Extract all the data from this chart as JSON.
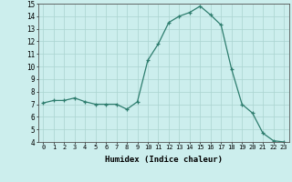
{
  "x": [
    0,
    1,
    2,
    3,
    4,
    5,
    6,
    7,
    8,
    9,
    10,
    11,
    12,
    13,
    14,
    15,
    16,
    17,
    18,
    19,
    20,
    21,
    22,
    23
  ],
  "y": [
    7.1,
    7.3,
    7.3,
    7.5,
    7.2,
    7.0,
    7.0,
    7.0,
    6.6,
    7.2,
    10.5,
    11.8,
    13.5,
    14.0,
    14.3,
    14.8,
    14.1,
    13.3,
    9.8,
    7.0,
    6.3,
    4.7,
    4.1,
    4.0
  ],
  "xlabel": "Humidex (Indice chaleur)",
  "xlim_min": -0.5,
  "xlim_max": 23.5,
  "ylim_min": 4,
  "ylim_max": 15,
  "yticks": [
    4,
    5,
    6,
    7,
    8,
    9,
    10,
    11,
    12,
    13,
    14,
    15
  ],
  "xticks": [
    0,
    1,
    2,
    3,
    4,
    5,
    6,
    7,
    8,
    9,
    10,
    11,
    12,
    13,
    14,
    15,
    16,
    17,
    18,
    19,
    20,
    21,
    22,
    23
  ],
  "line_color": "#2e7d6e",
  "bg_color": "#cceeed",
  "grid_color": "#aad4d0"
}
